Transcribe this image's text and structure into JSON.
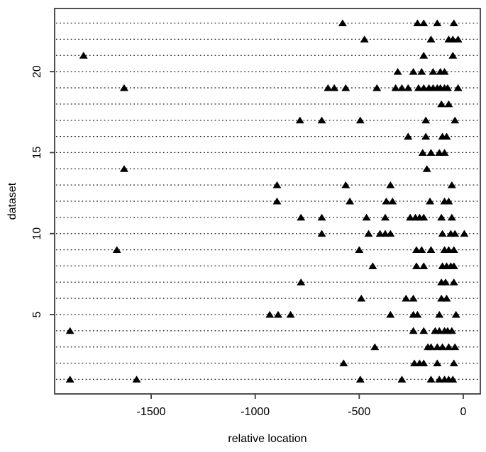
{
  "chart_data": {
    "type": "scatter",
    "marker": "filled-triangle-up",
    "marker_color": "#000000",
    "title": "",
    "xlabel": "relative location",
    "ylabel": "dataset",
    "xlim": [
      -1964,
      82
    ],
    "ylim": [
      0.1,
      23.9
    ],
    "x_ticks": [
      -1500,
      -1000,
      -500,
      0
    ],
    "y_ticks": [
      5,
      10,
      15,
      20
    ],
    "grid": "horizontal-dotted",
    "legend": "none",
    "series": [
      {
        "dataset": 1,
        "x": [
          -1890,
          -1570,
          -495,
          -295,
          -155,
          -115,
          -90,
          -70,
          -50
        ]
      },
      {
        "dataset": 2,
        "x": [
          -575,
          -235,
          -210,
          -190,
          -125,
          -45
        ]
      },
      {
        "dataset": 3,
        "x": [
          -425,
          -170,
          -155,
          -125,
          -100,
          -70,
          -40
        ]
      },
      {
        "dataset": 4,
        "x": [
          -1890,
          -240,
          -190,
          -135,
          -115,
          -90,
          -75,
          -55
        ]
      },
      {
        "dataset": 5,
        "x": [
          -930,
          -890,
          -830,
          -350,
          -240,
          -220,
          -115,
          -35
        ]
      },
      {
        "dataset": 6,
        "x": [
          -490,
          -275,
          -240,
          -105,
          -80
        ]
      },
      {
        "dataset": 7,
        "x": [
          -780,
          -105,
          -85,
          -45
        ]
      },
      {
        "dataset": 8,
        "x": [
          -435,
          -225,
          -190,
          -100,
          -80,
          -60,
          -45
        ]
      },
      {
        "dataset": 9,
        "x": [
          -1665,
          -500,
          -225,
          -200,
          -155,
          -90,
          -70,
          -45
        ]
      },
      {
        "dataset": 10,
        "x": [
          -680,
          -455,
          -400,
          -375,
          -350,
          -100,
          -60,
          -40,
          5
        ]
      },
      {
        "dataset": 11,
        "x": [
          -780,
          -680,
          -465,
          -375,
          -255,
          -230,
          -210,
          -190,
          -105,
          -55
        ]
      },
      {
        "dataset": 12,
        "x": [
          -895,
          -545,
          -370,
          -340,
          -160,
          -90,
          -70
        ]
      },
      {
        "dataset": 13,
        "x": [
          -895,
          -565,
          -350,
          -55
        ]
      },
      {
        "dataset": 14,
        "x": [
          -1630,
          -175
        ]
      },
      {
        "dataset": 15,
        "x": [
          -195,
          -155,
          -115,
          -90
        ]
      },
      {
        "dataset": 16,
        "x": [
          -265,
          -180,
          -100,
          -80
        ]
      },
      {
        "dataset": 17,
        "x": [
          -785,
          -680,
          -495,
          -180,
          -40
        ]
      },
      {
        "dataset": 18,
        "x": [
          -105,
          -70
        ]
      },
      {
        "dataset": 19,
        "x": [
          -1630,
          -650,
          -620,
          -565,
          -415,
          -325,
          -295,
          -265,
          -215,
          -190,
          -165,
          -145,
          -125,
          -110,
          -90,
          -75,
          -25
        ]
      },
      {
        "dataset": 20,
        "x": [
          -315,
          -240,
          -200,
          -145,
          -110,
          -90
        ]
      },
      {
        "dataset": 21,
        "x": [
          -1825,
          -190,
          -50
        ]
      },
      {
        "dataset": 22,
        "x": [
          -475,
          -155,
          -70,
          -50,
          -25
        ]
      },
      {
        "dataset": 23,
        "x": [
          -580,
          -220,
          -190,
          -125,
          -45
        ]
      }
    ]
  },
  "colors": {
    "background": "#ffffff",
    "box_stroke": "#3d3d3d",
    "grid_stroke": "#1a1a1a",
    "marker": "#000000",
    "text": "#000000"
  }
}
